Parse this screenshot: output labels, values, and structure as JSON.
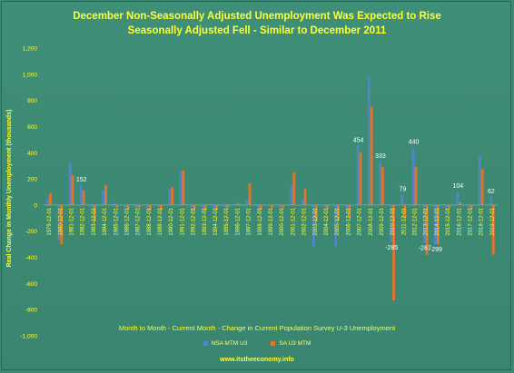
{
  "chart_data": {
    "type": "bar",
    "title": "December Non-Seasonally Adjusted Unemployment Was Expected to Rise",
    "subtitle": "Seasonally Adjusted Fell - Similar to December 2011",
    "ylabel": "Real Change in Monthly Unemployment (thousands)",
    "xlabel": "Month to Month - Current Month - Change in Current Population Survey U-3 Unemployment",
    "source": "www.itstheeconomy.info",
    "ylim": [
      -1000,
      1200
    ],
    "yticks": [
      -1000,
      -800,
      -600,
      -400,
      -200,
      0,
      200,
      400,
      600,
      800,
      1000,
      1200
    ],
    "ytick_labels": [
      "-1,000",
      "-800",
      "-600",
      "-400",
      "-200",
      "0",
      "200",
      "400",
      "600",
      "800",
      "1,000",
      "1,200"
    ],
    "grid": false,
    "legend_position": "bottom",
    "categories": [
      "1979-12-01",
      "1980-12-01",
      "1981-12-01",
      "1982-12-01",
      "1983-12-01",
      "1984-12-01",
      "1985-12-01",
      "1986-12-01",
      "1987-12-01",
      "1988-12-01",
      "1989-12-01",
      "1990-12-01",
      "1991-12-01",
      "1992-12-01",
      "1993-12-01",
      "1994-12-01",
      "1995-12-01",
      "1996-12-01",
      "1997-12-01",
      "1998-12-01",
      "1999-12-01",
      "2000-12-01",
      "2001-12-01",
      "2002-12-01",
      "2003-12-01",
      "2004-12-01",
      "2005-12-01",
      "2006-12-01",
      "2007-12-01",
      "2008-12-01",
      "2009-12-01",
      "2010-12-01",
      "2011-12-01",
      "2012-12-01",
      "2013-12-01",
      "2014-12-01",
      "2015-12-01",
      "2016-12-01",
      "2017-12-01",
      "2018-12-01",
      "2019-12-01"
    ],
    "series": [
      {
        "name": "NSA MTM U3",
        "color": "#4f86c6",
        "values": [
          60,
          -270,
          333,
          152,
          -20,
          110,
          15,
          -20,
          -30,
          -50,
          -20,
          125,
          255,
          -60,
          -60,
          -30,
          -40,
          15,
          40,
          -60,
          -10,
          -30,
          155,
          40,
          -320,
          -20,
          -320,
          -30,
          454,
          985,
          333,
          -285,
          79,
          440,
          -287,
          -299,
          -40,
          104,
          -40,
          380,
          62
        ]
      },
      {
        "name": "SA U3 MTM",
        "color": "#e2752e",
        "values": [
          90,
          -300,
          230,
          110,
          -130,
          155,
          -20,
          -30,
          -20,
          -40,
          -40,
          135,
          265,
          -40,
          -40,
          -40,
          -20,
          10,
          165,
          -30,
          -20,
          -20,
          250,
          120,
          -130,
          -30,
          -120,
          -100,
          400,
          750,
          290,
          -730,
          -100,
          290,
          -380,
          -300,
          -20,
          20,
          -30,
          275,
          -380
        ]
      }
    ],
    "annotations": [
      {
        "category": "1982-12-01",
        "text": "152"
      },
      {
        "category": "2007-12-01",
        "text": "454"
      },
      {
        "category": "2009-12-01",
        "text": "333"
      },
      {
        "category": "2010-12-01",
        "text": "-285"
      },
      {
        "category": "2011-12-01",
        "text": "79"
      },
      {
        "category": "2012-12-01",
        "text": "440"
      },
      {
        "category": "2013-12-01",
        "text": "-287"
      },
      {
        "category": "2014-12-01",
        "text": "-299"
      },
      {
        "category": "2016-12-01",
        "text": "104"
      },
      {
        "category": "2019-12-01",
        "text": "62"
      }
    ]
  }
}
